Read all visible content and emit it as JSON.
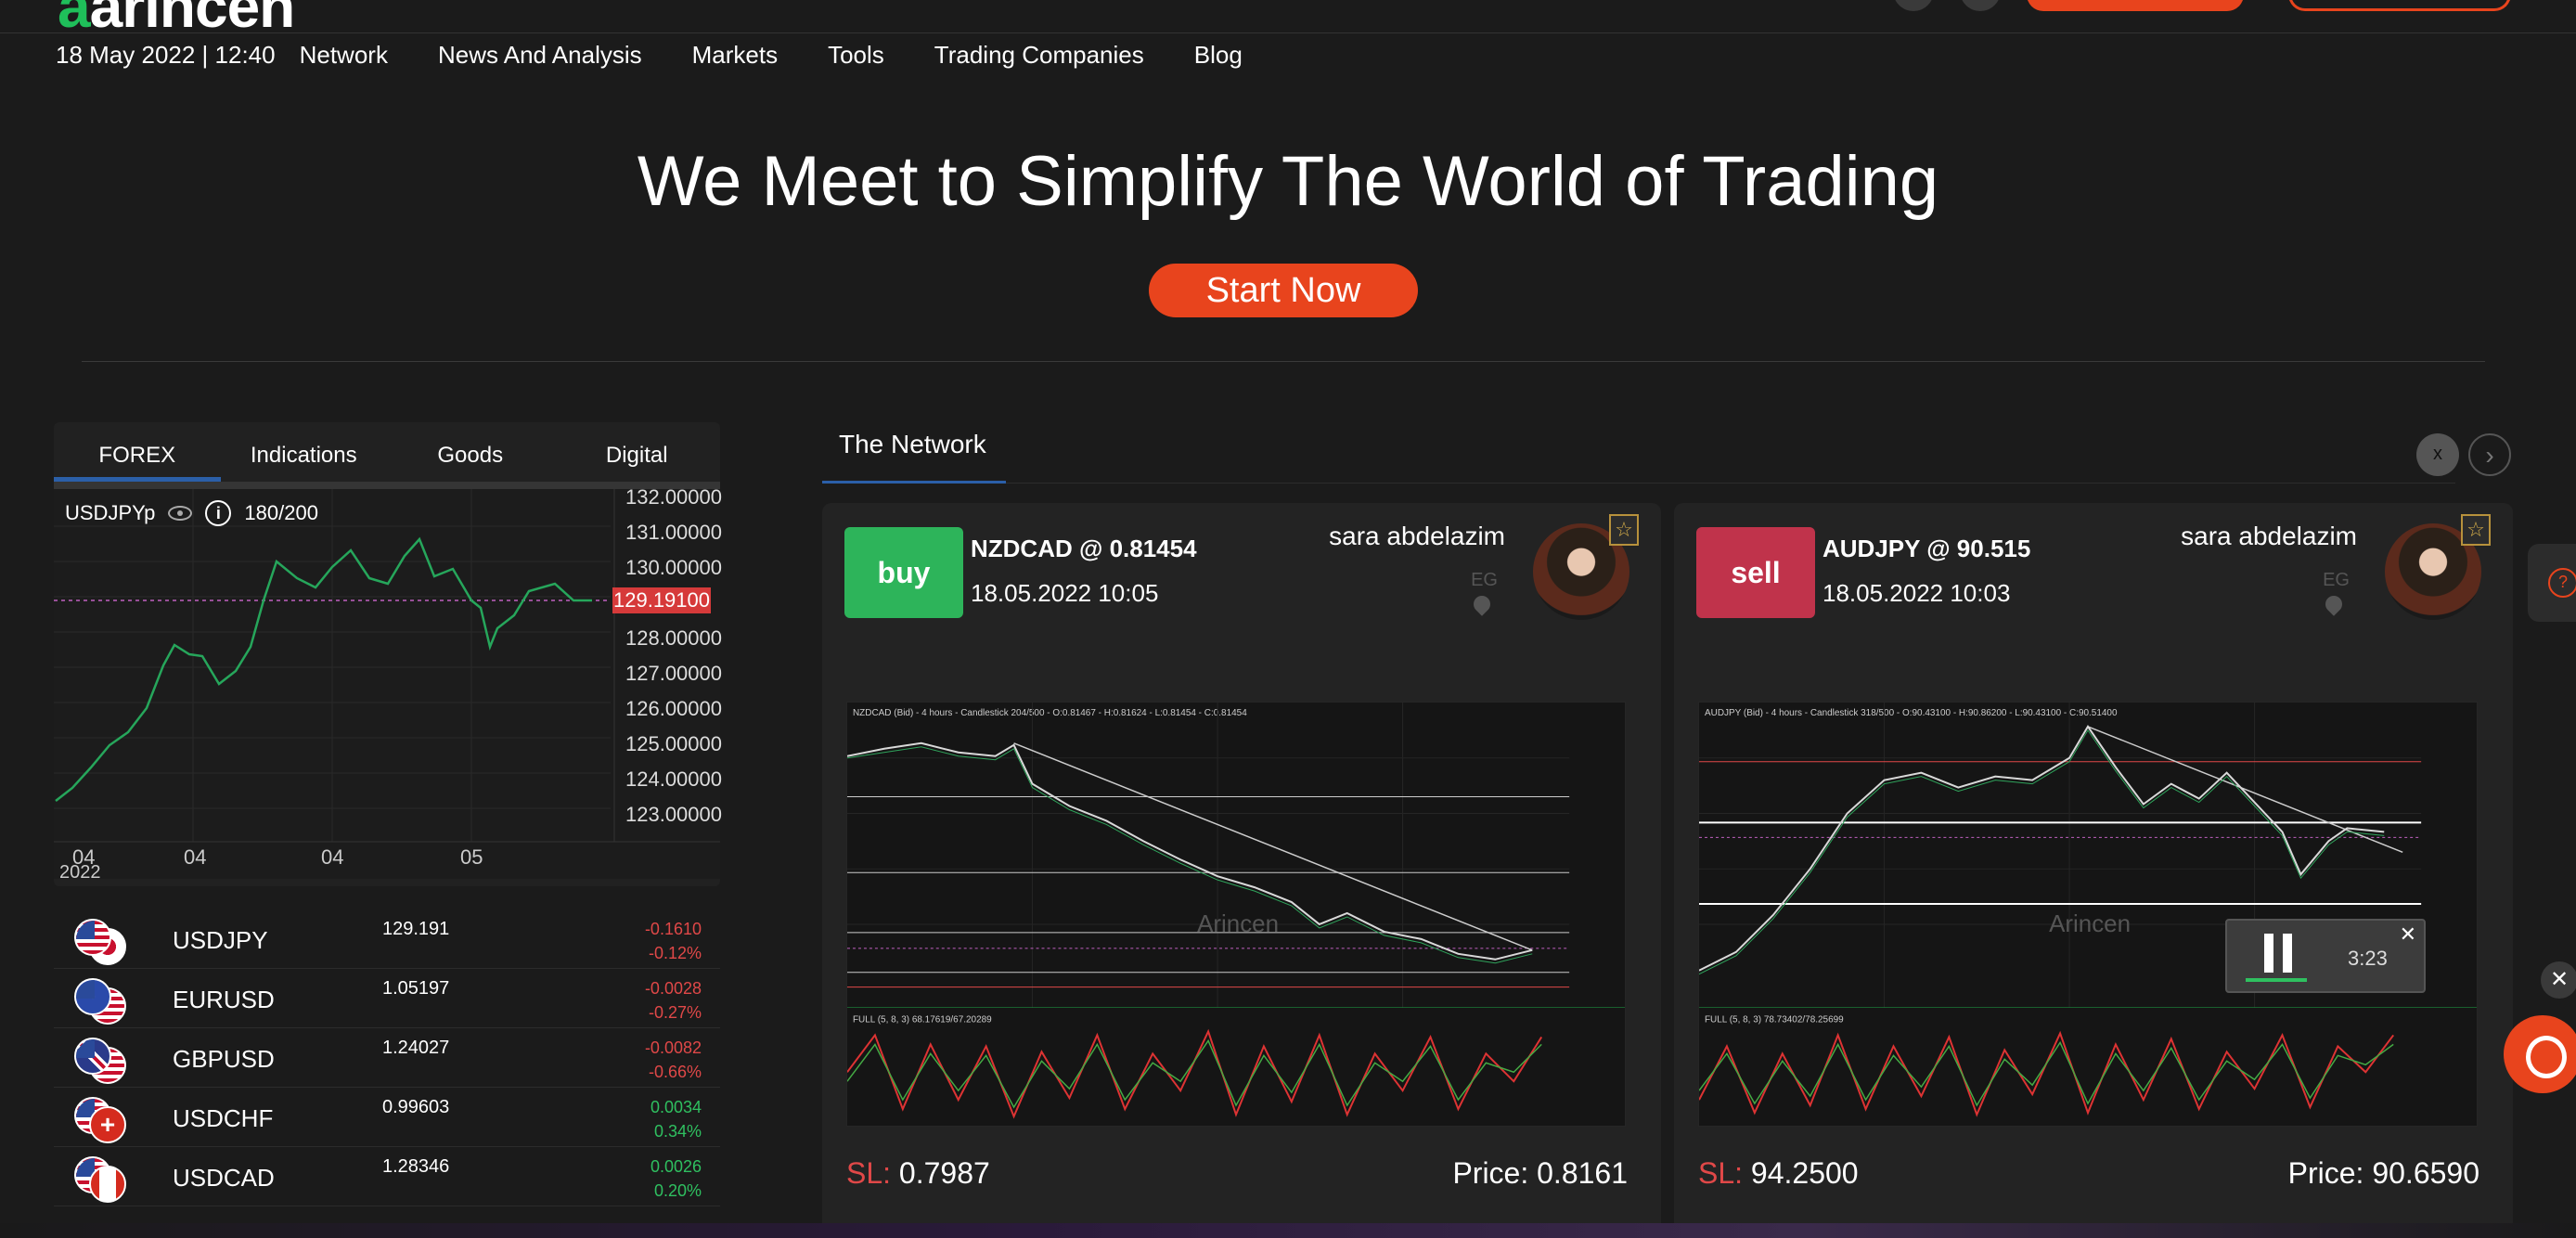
{
  "header": {
    "logo_text": "arincen"
  },
  "nav": {
    "datetime": "18 May 2022 | 12:40",
    "items": [
      "Network",
      "News And Analysis",
      "Markets",
      "Tools",
      "Trading Companies",
      "Blog"
    ]
  },
  "hero": {
    "title": "We Meet to Simplify The World of Trading",
    "cta": "Start Now"
  },
  "left_panel": {
    "tabs": [
      "FOREX",
      "Indications",
      "Goods",
      "Digital Currencies"
    ],
    "chart": {
      "symbol": "USDJPYp",
      "count": "180/200",
      "y_ticks": [
        "132.00000",
        "131.00000",
        "130.00000",
        "129.19100",
        "128.00000",
        "127.00000",
        "126.00000",
        "125.00000",
        "124.00000",
        "123.00000"
      ],
      "current_price": "129.19100",
      "x_ticks": [
        "04",
        "04",
        "04",
        "05"
      ],
      "x_year": "2022"
    },
    "tickers": [
      {
        "symbol": "USDJPY",
        "price": "129.191",
        "change": "-0.1610",
        "pct": "-0.12%"
      },
      {
        "symbol": "EURUSD",
        "price": "1.05197",
        "change": "-0.0028",
        "pct": "-0.27%"
      },
      {
        "symbol": "GBPUSD",
        "price": "1.24027",
        "change": "-0.0082",
        "pct": "-0.66%"
      },
      {
        "symbol": "USDCHF",
        "price": "0.99603",
        "change": "0.0034",
        "pct": "0.34%"
      },
      {
        "symbol": "USDCAD",
        "price": "1.28346",
        "change": "0.0026",
        "pct": "0.20%"
      }
    ]
  },
  "network": {
    "title": "The Network",
    "cards": [
      {
        "action": "buy",
        "pair": "NZDCAD @ 0.81454",
        "date": "18.05.2022 10:05",
        "user": "sara abdelazim",
        "country": "EG",
        "chart_header": "NZDCAD (Bid) - 4 hours - Candlestick   204/500 - O:0.81467 - H:0.81624 - L:0.81454 - C:0.81454",
        "watermark": "Arincen",
        "indicator": "FULL (5, 8, 3)   68.17619/67.20289",
        "sl_label": "SL:",
        "sl_value": "0.7987",
        "price_label": "Price: 0.8161"
      },
      {
        "action": "sell",
        "pair": "AUDJPY @ 90.515",
        "date": "18.05.2022 10:03",
        "user": "sara abdelazim",
        "country": "EG",
        "chart_header": "AUDJPY (Bid) - 4 hours - Candlestick   318/500 - O:90.43100 - H:90.86200 - L:90.43100 - C:90.51400",
        "watermark": "Arincen",
        "indicator": "FULL (5, 8, 3)   78.73402/78.25699",
        "sl_label": "SL:",
        "sl_value": "94.2500",
        "price_label": "Price: 90.6590"
      }
    ]
  },
  "video": {
    "time": "3:23"
  }
}
